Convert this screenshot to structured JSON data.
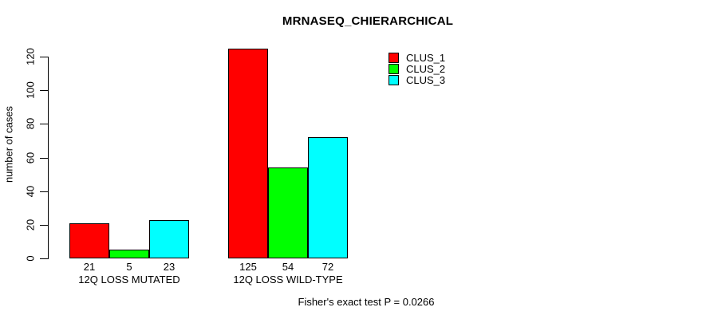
{
  "title": "MRNASEQ_CHIERARCHICAL",
  "y_axis": {
    "label": "number of cases",
    "ticks": [
      0,
      20,
      40,
      60,
      80,
      100,
      120
    ]
  },
  "footnote": "Fisher's exact test P = 0.0266",
  "legend": {
    "position": "top-right",
    "items": [
      {
        "label": "CLUS_1",
        "color": "#ff0000"
      },
      {
        "label": "CLUS_2",
        "color": "#00ff00"
      },
      {
        "label": "CLUS_3",
        "color": "#00ffff"
      }
    ]
  },
  "chart_data": {
    "type": "bar",
    "grouped": true,
    "title": "MRNASEQ_CHIERARCHICAL",
    "categories": [
      "12Q LOSS MUTATED",
      "12Q LOSS WILD-TYPE"
    ],
    "series": [
      {
        "name": "CLUS_1",
        "color": "#ff0000",
        "values": [
          21,
          125
        ]
      },
      {
        "name": "CLUS_2",
        "color": "#00ff00",
        "values": [
          5,
          54
        ]
      },
      {
        "name": "CLUS_3",
        "color": "#00ffff",
        "values": [
          23,
          72
        ]
      }
    ],
    "bar_value_labels": [
      [
        21,
        5,
        23
      ],
      [
        125,
        54,
        72
      ]
    ],
    "xlabel": "",
    "ylabel": "number of cases",
    "ylim": [
      0,
      125
    ],
    "y_ticks": [
      0,
      20,
      40,
      60,
      80,
      100,
      120
    ],
    "grid": false,
    "legend_position": "top-right",
    "annotation": "Fisher's exact test P = 0.0266"
  }
}
